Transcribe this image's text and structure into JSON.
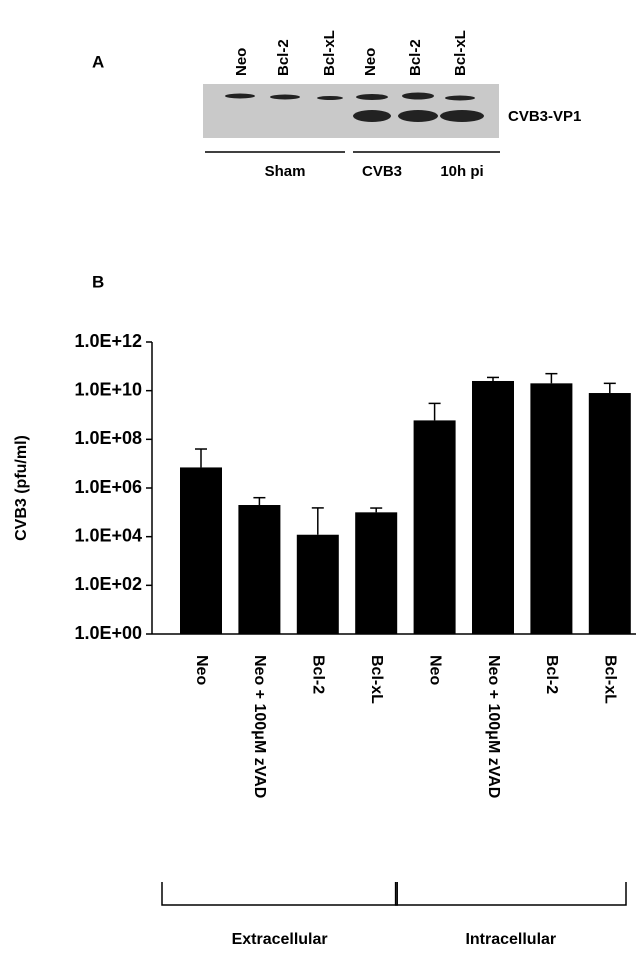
{
  "panel_a": {
    "label": "A",
    "lanes": [
      "Neo",
      "Bcl-2",
      "Bcl-xL",
      "Neo",
      "Bcl-2",
      "Bcl-xL"
    ],
    "band_label": "CVB3-VP1",
    "groups": [
      "Sham",
      "CVB3",
      "10h pi"
    ]
  },
  "chart_data": {
    "type": "bar",
    "panel_label": "B",
    "y_label": "CVB3 (pfu/ml)",
    "categories": [
      "Neo",
      "Neo + 100μM zVAD",
      "Bcl-2",
      "Bcl-xL",
      "Neo",
      "Neo + 100μM zVAD",
      "Bcl-2",
      "Bcl-xL"
    ],
    "values": [
      7000000,
      200000,
      12000,
      100000,
      600000000,
      25000000000,
      20000000000,
      8000000000
    ],
    "errors": [
      33000000,
      200000,
      140000,
      50000,
      2400000000,
      10000000000,
      30000000000,
      12000000000
    ],
    "color": "#000000",
    "log_scale": true,
    "ylim": [
      1,
      1000000000000
    ],
    "yticks": [
      {
        "value": 1,
        "label": "1.0E+00"
      },
      {
        "value": 100,
        "label": "1.0E+02"
      },
      {
        "value": 10000,
        "label": "1.0E+04"
      },
      {
        "value": 1000000,
        "label": "1.0E+06"
      },
      {
        "value": 100000000,
        "label": "1.0E+08"
      },
      {
        "value": 10000000000,
        "label": "1.0E+10"
      },
      {
        "value": 1000000000000,
        "label": "1.0E+12"
      }
    ],
    "groups": [
      "Extracellular",
      "Intracellular"
    ]
  }
}
